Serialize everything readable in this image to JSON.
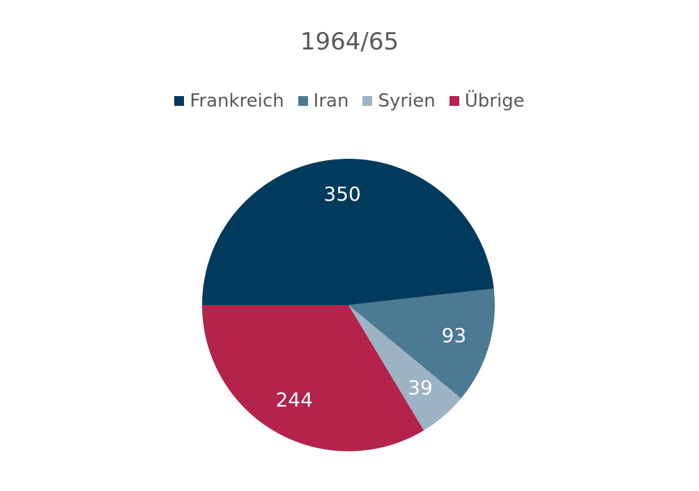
{
  "chart_data": {
    "type": "pie",
    "title": "1964/65",
    "legend_placement": "top",
    "start_angle_deg": 180,
    "direction": "clockwise",
    "slices": [
      {
        "label": "Frankreich",
        "value": 350,
        "color": "#003a5d"
      },
      {
        "label": "Iran",
        "value": 93,
        "color": "#4d7a93"
      },
      {
        "label": "Syrien",
        "value": 39,
        "color": "#9bb3c2"
      },
      {
        "label": "Übrige",
        "value": 244,
        "color": "#b3234b"
      }
    ]
  }
}
